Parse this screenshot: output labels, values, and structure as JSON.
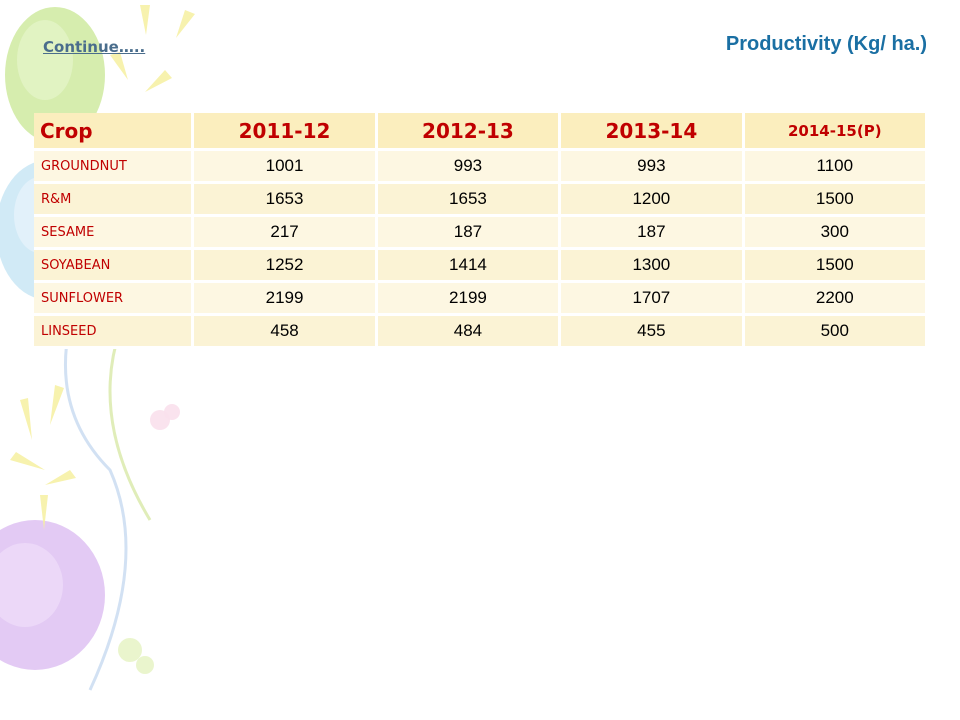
{
  "slide": {
    "continue_label": "Continue…..",
    "title": "Productivity (Kg/ ha.)"
  },
  "table": {
    "headers": [
      "Crop",
      "2011-12",
      "2012-13",
      "2013-14",
      "2014-15(P)"
    ],
    "rows": [
      {
        "crop": "GROUNDNUT",
        "values": [
          "1001",
          "993",
          "993",
          "1100"
        ]
      },
      {
        "crop": "R&M",
        "values": [
          "1653",
          "1653",
          "1200",
          "1500"
        ]
      },
      {
        "crop": "SESAME",
        "values": [
          "217",
          "187",
          "187",
          "300"
        ]
      },
      {
        "crop": "SOYABEAN",
        "values": [
          "1252",
          "1414",
          "1300",
          "1500"
        ]
      },
      {
        "crop": "SUNFLOWER",
        "values": [
          "2199",
          "2199",
          "1707",
          "2200"
        ]
      },
      {
        "crop": "LINSEED",
        "values": [
          "458",
          "484",
          "455",
          "500"
        ]
      }
    ]
  },
  "colors": {
    "title": "#1a6fa3",
    "header_text": "#c00000",
    "header_bg": "#fbeebe",
    "row_bg": "#fdf7e2"
  }
}
